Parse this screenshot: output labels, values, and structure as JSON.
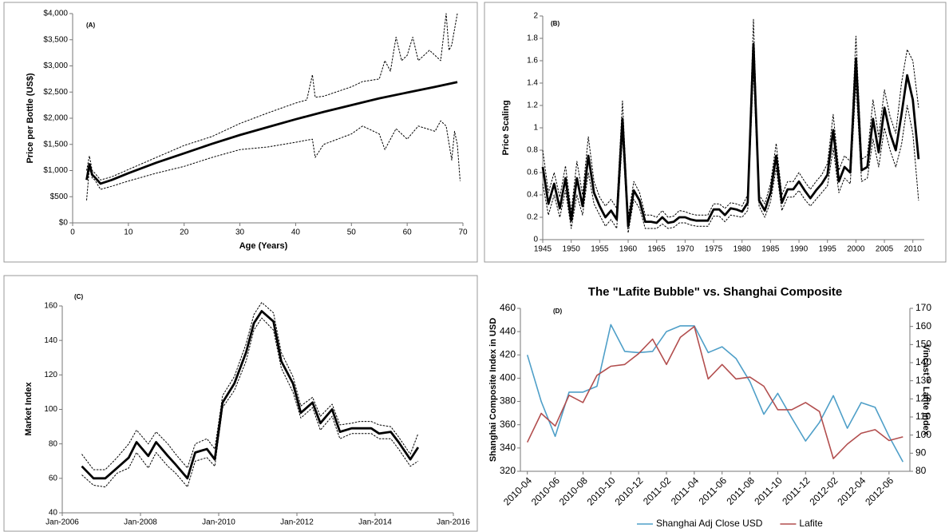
{
  "chart_data": [
    {
      "type": "line",
      "annotation": "(A)",
      "x_label": "Age (Years)",
      "y_label": "Price per Bottle (US$)",
      "xlim": [
        0,
        70
      ],
      "xticks": [
        0,
        10,
        20,
        30,
        40,
        50,
        60,
        70
      ],
      "ylim": [
        0,
        4000
      ],
      "yticks": [
        {
          "value": 0,
          "label": "$0"
        },
        {
          "value": 500,
          "label": "$500"
        },
        {
          "value": 1000,
          "label": "$1,000"
        },
        {
          "value": 1500,
          "label": "$1,500"
        },
        {
          "value": 2000,
          "label": "$2,000"
        },
        {
          "value": 2500,
          "label": "$2,500"
        },
        {
          "value": 3000,
          "label": "$3,000"
        },
        {
          "value": 3500,
          "label": "$3,500"
        },
        {
          "value": 4000,
          "label": "$4,000"
        }
      ],
      "grid": false,
      "series": [
        {
          "color": "#000000",
          "style": "dashed",
          "x": [
            2.5,
            3,
            3.5,
            4,
            5,
            7,
            10,
            15,
            20,
            25,
            30,
            35,
            40,
            42,
            43,
            43.5,
            45,
            50,
            52,
            55,
            56,
            57,
            58,
            59,
            60,
            61,
            62,
            64,
            65,
            66,
            67,
            67.5,
            68,
            69
          ],
          "values": [
            1000,
            1280,
            1000,
            950,
            820,
            880,
            1020,
            1250,
            1480,
            1650,
            1900,
            2100,
            2290,
            2350,
            2830,
            2400,
            2420,
            2600,
            2700,
            2750,
            3100,
            2900,
            3550,
            3100,
            3200,
            3550,
            3100,
            3300,
            3200,
            3100,
            4000,
            3300,
            3400,
            4000
          ]
        },
        {
          "color": "#000000",
          "style": "solid",
          "x": [
            2.5,
            3,
            3.5,
            4,
            5,
            7,
            10,
            15,
            20,
            25,
            30,
            35,
            40,
            45,
            50,
            55,
            60,
            65,
            69
          ],
          "values": [
            820,
            1120,
            920,
            870,
            750,
            820,
            950,
            1150,
            1330,
            1510,
            1680,
            1830,
            1980,
            2120,
            2250,
            2380,
            2490,
            2600,
            2690
          ]
        },
        {
          "color": "#000000",
          "style": "dashed",
          "x": [
            2.5,
            3,
            3.5,
            4,
            5,
            7,
            10,
            15,
            20,
            25,
            30,
            35,
            40,
            43,
            43.5,
            45,
            50,
            52,
            55,
            56,
            58,
            60,
            62,
            65,
            66,
            67,
            68,
            68.5,
            69,
            69.5
          ],
          "values": [
            430,
            1050,
            860,
            820,
            640,
            700,
            800,
            950,
            1080,
            1250,
            1400,
            1450,
            1540,
            1600,
            1250,
            1500,
            1700,
            1850,
            1700,
            1400,
            1800,
            1600,
            1850,
            1750,
            1950,
            1850,
            1200,
            1750,
            1500,
            800
          ]
        }
      ]
    },
    {
      "type": "line",
      "annotation": "(B)",
      "y_label": "Price Scaling",
      "xlim": [
        1945,
        2012
      ],
      "xticks": [
        1945,
        1950,
        1955,
        1960,
        1965,
        1970,
        1975,
        1980,
        1985,
        1990,
        1995,
        2000,
        2005,
        2010
      ],
      "ylim": [
        0,
        2
      ],
      "yticks": [
        0,
        0.2,
        0.4,
        0.6,
        0.8,
        1,
        1.2,
        1.4,
        1.6,
        1.8,
        2
      ],
      "grid": false,
      "x": [
        1945,
        1946,
        1947,
        1948,
        1949,
        1950,
        1951,
        1952,
        1953,
        1954,
        1955,
        1956,
        1957,
        1958,
        1959,
        1960,
        1961,
        1962,
        1963,
        1964,
        1965,
        1966,
        1967,
        1968,
        1969,
        1970,
        1971,
        1972,
        1973,
        1974,
        1975,
        1976,
        1977,
        1978,
        1979,
        1980,
        1981,
        1982,
        1983,
        1984,
        1985,
        1986,
        1987,
        1988,
        1989,
        1990,
        1991,
        1992,
        1993,
        1994,
        1995,
        1996,
        1997,
        1998,
        1999,
        2000,
        2001,
        2002,
        2003,
        2004,
        2005,
        2006,
        2007,
        2008,
        2009,
        2010,
        2011
      ],
      "series": [
        {
          "color": "#000000",
          "style": "dashed",
          "values": [
            0.8,
            0.42,
            0.6,
            0.38,
            0.66,
            0.25,
            0.7,
            0.4,
            0.92,
            0.52,
            0.38,
            0.3,
            0.36,
            0.28,
            1.24,
            0.2,
            0.52,
            0.42,
            0.22,
            0.22,
            0.2,
            0.26,
            0.2,
            0.21,
            0.26,
            0.25,
            0.23,
            0.22,
            0.22,
            0.22,
            0.32,
            0.32,
            0.28,
            0.33,
            0.32,
            0.3,
            0.4,
            1.97,
            0.4,
            0.32,
            0.5,
            0.86,
            0.4,
            0.52,
            0.52,
            0.6,
            0.52,
            0.45,
            0.52,
            0.58,
            0.68,
            1.12,
            0.62,
            0.75,
            0.7,
            1.82,
            0.72,
            0.75,
            1.25,
            0.92,
            1.34,
            1.1,
            0.95,
            1.4,
            1.7,
            1.6,
            1.18
          ]
        },
        {
          "color": "#000000",
          "style": "dashed",
          "values": [
            0.5,
            0.22,
            0.4,
            0.2,
            0.44,
            0.1,
            0.4,
            0.22,
            0.6,
            0.32,
            0.22,
            0.12,
            0.18,
            0.1,
            0.92,
            0.06,
            0.36,
            0.28,
            0.1,
            0.1,
            0.1,
            0.14,
            0.1,
            0.11,
            0.15,
            0.15,
            0.13,
            0.12,
            0.12,
            0.12,
            0.21,
            0.21,
            0.16,
            0.22,
            0.21,
            0.2,
            0.26,
            1.52,
            0.3,
            0.2,
            0.34,
            0.64,
            0.26,
            0.38,
            0.38,
            0.44,
            0.36,
            0.3,
            0.36,
            0.42,
            0.48,
            0.82,
            0.42,
            0.55,
            0.5,
            1.4,
            0.52,
            0.55,
            0.9,
            0.65,
            1.0,
            0.8,
            0.65,
            0.85,
            1.2,
            0.95,
            0.35
          ]
        },
        {
          "color": "#000000",
          "style": "solid",
          "values": [
            0.65,
            0.32,
            0.5,
            0.28,
            0.55,
            0.17,
            0.55,
            0.3,
            0.75,
            0.42,
            0.3,
            0.2,
            0.26,
            0.18,
            1.08,
            0.12,
            0.44,
            0.35,
            0.16,
            0.16,
            0.15,
            0.2,
            0.15,
            0.16,
            0.2,
            0.2,
            0.18,
            0.17,
            0.17,
            0.17,
            0.27,
            0.27,
            0.22,
            0.28,
            0.27,
            0.25,
            0.33,
            1.75,
            0.35,
            0.26,
            0.42,
            0.75,
            0.33,
            0.45,
            0.45,
            0.52,
            0.44,
            0.37,
            0.44,
            0.5,
            0.58,
            0.98,
            0.52,
            0.65,
            0.6,
            1.62,
            0.62,
            0.65,
            1.08,
            0.78,
            1.18,
            0.95,
            0.8,
            1.12,
            1.47,
            1.25,
            0.72
          ]
        }
      ]
    },
    {
      "type": "line",
      "annotation": "(C)",
      "y_label": "Market Index",
      "xlim": [
        2006,
        2016
      ],
      "xticks": [
        {
          "value": 2006,
          "label": "Jan-2006"
        },
        {
          "value": 2008,
          "label": "Jan-2008"
        },
        {
          "value": 2010,
          "label": "Jan-2010"
        },
        {
          "value": 2012,
          "label": "Jan-2012"
        },
        {
          "value": 2014,
          "label": "Jan-2014"
        },
        {
          "value": 2016,
          "label": "Jan-2016"
        }
      ],
      "ylim": [
        40,
        160
      ],
      "yticks": [
        40,
        60,
        80,
        100,
        120,
        140,
        160
      ],
      "grid": false,
      "x": [
        2006.5,
        2006.8,
        2007.1,
        2007.4,
        2007.7,
        2007.9,
        2008.2,
        2008.4,
        2008.7,
        2008.9,
        2009.2,
        2009.4,
        2009.7,
        2009.9,
        2010.1,
        2010.4,
        2010.7,
        2010.9,
        2011.1,
        2011.4,
        2011.6,
        2011.9,
        2012.1,
        2012.4,
        2012.6,
        2012.9,
        2013.1,
        2013.4,
        2013.6,
        2013.9,
        2014.1,
        2014.4,
        2014.6,
        2014.9,
        2015.1
      ],
      "series": [
        {
          "color": "#000000",
          "style": "dashed",
          "values": [
            74,
            65,
            65,
            72,
            80,
            88,
            80,
            87,
            80,
            74,
            66,
            80,
            83,
            77,
            108,
            119,
            138,
            155,
            162,
            156,
            133,
            119,
            102,
            107,
            96,
            103,
            91,
            92,
            93,
            93,
            91,
            90,
            84,
            74,
            86
          ]
        },
        {
          "color": "#000000",
          "style": "dashed",
          "values": [
            62,
            56,
            55,
            63,
            66,
            75,
            66,
            75,
            67,
            63,
            55,
            70,
            72,
            67,
            101,
            111,
            128,
            146,
            153,
            146,
            124,
            110,
            95,
            101,
            88,
            96,
            83,
            86,
            86,
            86,
            83,
            83,
            77,
            67,
            70
          ]
        },
        {
          "color": "#000000",
          "style": "solid",
          "values": [
            67,
            60,
            60,
            66,
            72,
            81,
            73,
            81,
            73,
            68,
            60,
            75,
            77,
            71,
            104,
            115,
            133,
            150,
            157,
            151,
            128,
            115,
            98,
            104,
            92,
            100,
            87,
            89,
            89,
            89,
            86,
            87,
            81,
            71,
            78
          ]
        }
      ]
    },
    {
      "type": "line",
      "title": "The \"Lafite Bubble\" vs. Shanghai Composite",
      "annotation": "(D)",
      "y_label": "Shanghai Composite Index in USD",
      "y2_label": "Vincast™ Lafite Index",
      "categories": [
        "2010-04",
        null,
        "2010-06",
        null,
        "2010-08",
        null,
        "2010-10",
        null,
        "2010-12",
        null,
        "2011-02",
        null,
        "2011-04",
        null,
        "2011-06",
        null,
        "2011-08",
        null,
        "2011-10",
        null,
        "2011-12",
        null,
        "2012-02",
        null,
        "2012-04",
        null,
        "2012-06",
        null
      ],
      "ylim": [
        320,
        460
      ],
      "yticks": [
        320,
        340,
        360,
        380,
        400,
        420,
        440,
        460
      ],
      "y2lim": [
        80,
        170
      ],
      "y2ticks": [
        80,
        90,
        100,
        110,
        120,
        130,
        140,
        150,
        160,
        170
      ],
      "grid": false,
      "legend": "bottom",
      "series": [
        {
          "name": "Shanghai Adj Close USD",
          "color": "#4f9fc8",
          "style": "solid",
          "values": [
            420,
            380,
            350,
            388,
            388,
            393,
            446,
            423,
            422,
            423,
            440,
            445,
            445,
            422,
            427,
            417,
            397,
            369,
            387,
            366,
            346,
            362,
            385,
            357,
            379,
            375,
            350,
            328
          ]
        },
        {
          "name": "Lafite",
          "color": "#b24e4e",
          "style": "solid",
          "axis": "y2",
          "values": [
            96,
            112,
            105,
            122,
            118,
            133,
            138,
            139,
            145,
            153,
            139,
            154,
            160,
            131,
            139,
            131,
            132,
            127,
            114,
            114,
            118,
            113,
            87,
            95,
            101,
            103,
            97,
            99
          ]
        }
      ]
    }
  ]
}
